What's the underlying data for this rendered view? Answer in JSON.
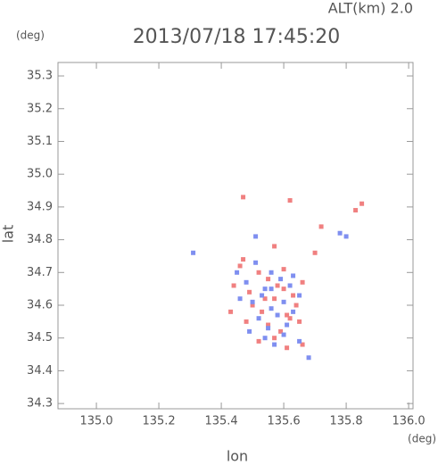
{
  "chart_data": {
    "type": "scatter",
    "title": "2013/07/18 17:45:20",
    "subtitle": "ALT(km) 2.0",
    "y_unit": "(deg)",
    "x_unit": "(deg)",
    "x_label": "lon",
    "y_label": "lat",
    "xlim": [
      134.877,
      136.014
    ],
    "ylim": [
      34.284,
      35.341
    ],
    "xticks": [
      {
        "value": 135.0,
        "label": "135.0"
      },
      135.2,
      135.4,
      135.6,
      135.8,
      {
        "value": 136.0,
        "label": "136.0"
      }
    ],
    "yticks": [
      34.3,
      34.4,
      34.5,
      34.6,
      34.7,
      34.8,
      34.9,
      {
        "value": 35.0,
        "label": "35.0"
      },
      35.1,
      35.2,
      35.3
    ],
    "series": [
      {
        "color": "#f08080",
        "x": [
          135.47,
          135.62,
          135.83,
          135.85,
          135.57,
          135.72,
          135.7,
          135.44,
          135.46,
          135.49,
          135.52,
          135.55,
          135.58,
          135.6,
          135.63,
          135.66,
          135.5,
          135.53,
          135.57,
          135.61,
          135.64,
          135.48,
          135.55,
          135.59,
          135.62,
          135.52,
          135.57,
          135.61,
          135.66,
          135.43,
          135.54,
          135.6,
          135.65,
          135.47
        ],
        "y": [
          34.93,
          34.92,
          34.89,
          34.91,
          34.78,
          34.84,
          34.76,
          34.66,
          34.72,
          34.64,
          34.7,
          34.68,
          34.66,
          34.71,
          34.63,
          34.67,
          34.6,
          34.58,
          34.62,
          34.57,
          34.6,
          34.55,
          34.54,
          34.52,
          34.56,
          34.49,
          34.5,
          34.47,
          34.48,
          34.58,
          34.62,
          34.65,
          34.55,
          34.74
        ]
      },
      {
        "color": "#7f8ff0",
        "x": [
          135.31,
          135.78,
          135.8,
          135.51,
          135.45,
          135.48,
          135.51,
          135.54,
          135.56,
          135.59,
          135.62,
          135.65,
          135.5,
          135.53,
          135.56,
          135.6,
          135.63,
          135.46,
          135.52,
          135.55,
          135.58,
          135.61,
          135.54,
          135.57,
          135.6,
          135.68,
          135.65,
          135.49,
          135.56,
          135.63
        ],
        "y": [
          34.76,
          34.82,
          34.81,
          34.81,
          34.7,
          34.67,
          34.73,
          34.65,
          34.7,
          34.68,
          34.66,
          34.63,
          34.61,
          34.63,
          34.59,
          34.61,
          34.58,
          34.62,
          34.56,
          34.53,
          34.57,
          34.54,
          34.5,
          34.48,
          34.51,
          34.44,
          34.49,
          34.52,
          34.65,
          34.69
        ]
      }
    ]
  }
}
